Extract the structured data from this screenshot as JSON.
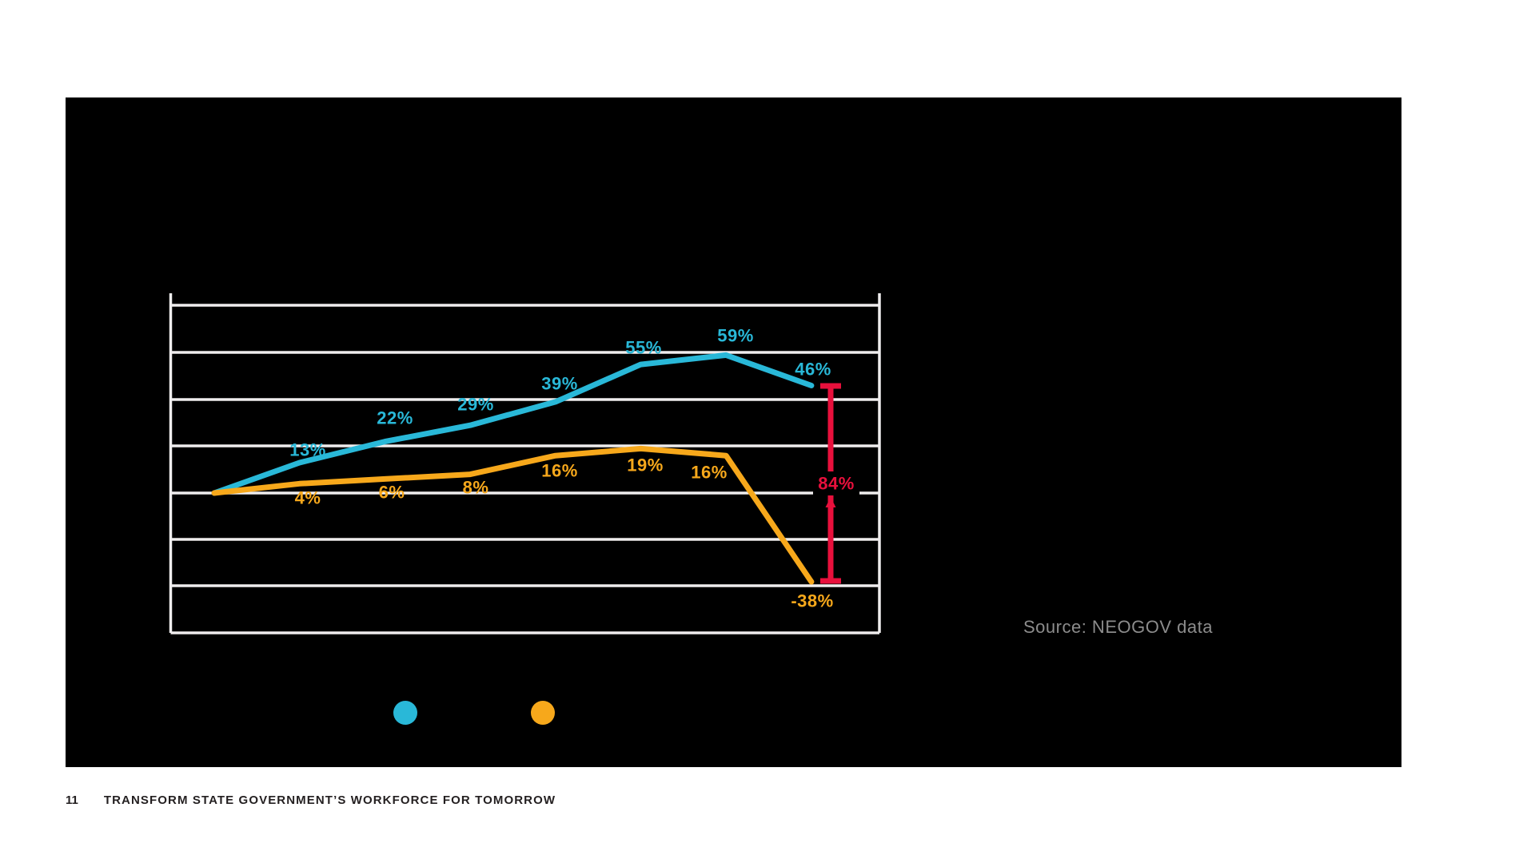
{
  "slide": {
    "source_note": "Source: NEOGOV data"
  },
  "footer": {
    "page_number": "11",
    "title": "TRANSFORM STATE GOVERNMENT’S WORKFORCE FOR TOMORROW"
  },
  "colors": {
    "slide_bg": "#000000",
    "grid": "#efedee",
    "cyan": "#29b8d8",
    "orange": "#f7a81b",
    "red": "#e8103c",
    "source_text": "#8c8c8c",
    "footer_text": "#231f20"
  },
  "chart_data": {
    "type": "line",
    "title": "",
    "grid": true,
    "y_axis": {
      "min": -60,
      "max": 80,
      "grid_step": 20,
      "unit": "%",
      "tick_labels_visible": false
    },
    "x_axis": {
      "tick_labels_visible": false,
      "points_per_series": 8
    },
    "series": [
      {
        "id": "series-cyan",
        "color": "#29b8d8",
        "values": [
          0,
          13,
          22,
          29,
          39,
          55,
          59,
          46
        ],
        "point_labels": [
          "13%",
          "22%",
          "29%",
          "39%",
          "55%",
          "59%",
          "46%"
        ]
      },
      {
        "id": "series-orange",
        "color": "#f7a81b",
        "values": [
          0,
          4,
          6,
          8,
          16,
          19,
          16,
          -38
        ],
        "point_labels": [
          "4%",
          "6%",
          "8%",
          "16%",
          "19%",
          "16%",
          "-38%"
        ]
      }
    ],
    "gap_annotation": {
      "label": "84%",
      "color": "#e8103c",
      "from_value": 46,
      "to_value": -38
    },
    "legend": {
      "labels_visible": false,
      "markers": [
        {
          "id": "legend-marker-cyan",
          "color": "#29b8d8"
        },
        {
          "id": "legend-marker-orange",
          "color": "#f7a81b"
        }
      ]
    }
  }
}
